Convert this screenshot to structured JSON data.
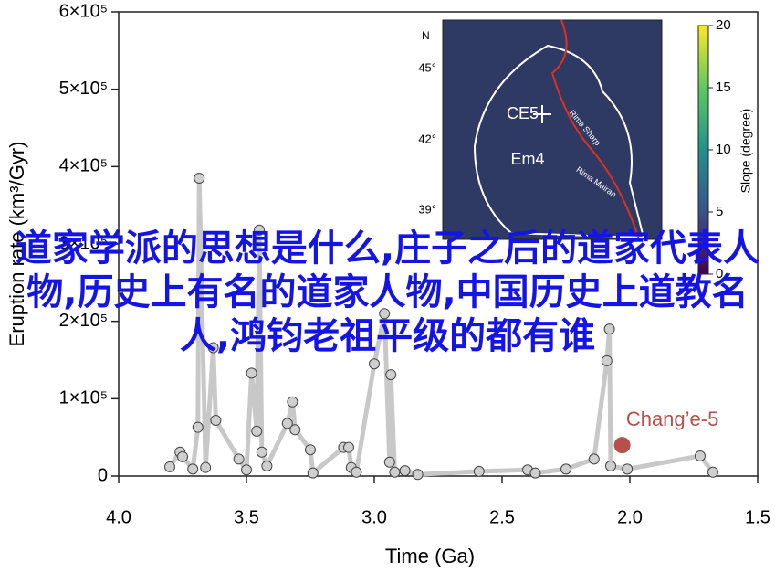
{
  "chart_data": {
    "type": "line",
    "xlabel": "Time (Ga)",
    "ylabel": "Eruption rate (km³/Gyr)",
    "xlim": [
      4.0,
      1.5
    ],
    "xticks": [
      {
        "value": 4.0,
        "label": "4.0"
      },
      {
        "value": 3.5,
        "label": "3.5"
      },
      {
        "value": 3.0,
        "label": "3.0"
      },
      {
        "value": 2.5,
        "label": "2.5"
      },
      {
        "value": 2.0,
        "label": "2.0"
      },
      {
        "value": 1.5,
        "label": "1.5"
      }
    ],
    "ylim": [
      0,
      600000
    ],
    "yticks": [
      0,
      {
        "value": 100000,
        "label": "1×10⁵"
      },
      {
        "value": 200000,
        "label": "2×10⁵"
      },
      {
        "value": 300000,
        "label": "3×10⁵"
      },
      {
        "value": 400000,
        "label": "4×10⁵"
      },
      {
        "value": 500000,
        "label": "5×10⁵"
      },
      {
        "value": 600000,
        "label": "6×10⁵"
      }
    ],
    "series": [
      {
        "color": "#c8c8c8",
        "x": [
          3.8,
          3.76,
          3.75,
          3.71,
          3.69,
          3.685,
          3.66,
          3.63,
          3.62,
          3.53,
          3.5,
          3.48,
          3.46,
          3.45,
          3.44,
          3.42,
          3.34,
          3.32,
          3.31,
          3.25,
          3.24,
          3.12,
          3.1,
          3.09,
          3.07,
          3.0,
          2.96,
          2.94,
          2.935,
          2.92,
          2.88,
          2.83,
          2.59,
          2.4,
          2.37,
          2.25,
          2.14,
          2.09,
          2.08,
          2.075,
          2.01,
          1.725,
          1.675
        ],
        "values": [
          12000,
          31000,
          25000,
          9000,
          63000,
          385000,
          11000,
          166000,
          72000,
          22000,
          8000,
          133000,
          58000,
          318000,
          31000,
          13000,
          68000,
          96000,
          60000,
          34000,
          4000,
          37000,
          37000,
          11000,
          5000,
          145000,
          210000,
          18000,
          131000,
          5000,
          7000,
          2000,
          6000,
          8000,
          4000,
          9000,
          22000,
          149000,
          190000,
          13000,
          9000,
          26000,
          5000
        ]
      }
    ],
    "annotation": {
      "text": "Chang’e-5",
      "x": 2.03,
      "y": 40000,
      "color": "#b5504c"
    }
  },
  "inset": {
    "north": "N",
    "lat_labels": [
      "45°",
      "42°",
      "39°"
    ],
    "site": "CE5",
    "unit": "Em4",
    "rilles": [
      "Rima Sharp",
      "Rima Mairan"
    ],
    "colorbar_label": "Slope (degree)",
    "clim": [
      0,
      20
    ],
    "cticks": [
      0,
      5,
      10,
      15,
      20
    ]
  },
  "overlay_text": "道家学派的思想是什么,庄子之后的道家代表人物,历史上有名的道家人物,中国历史上道教名人,鸿钧老祖平级的都有谁"
}
